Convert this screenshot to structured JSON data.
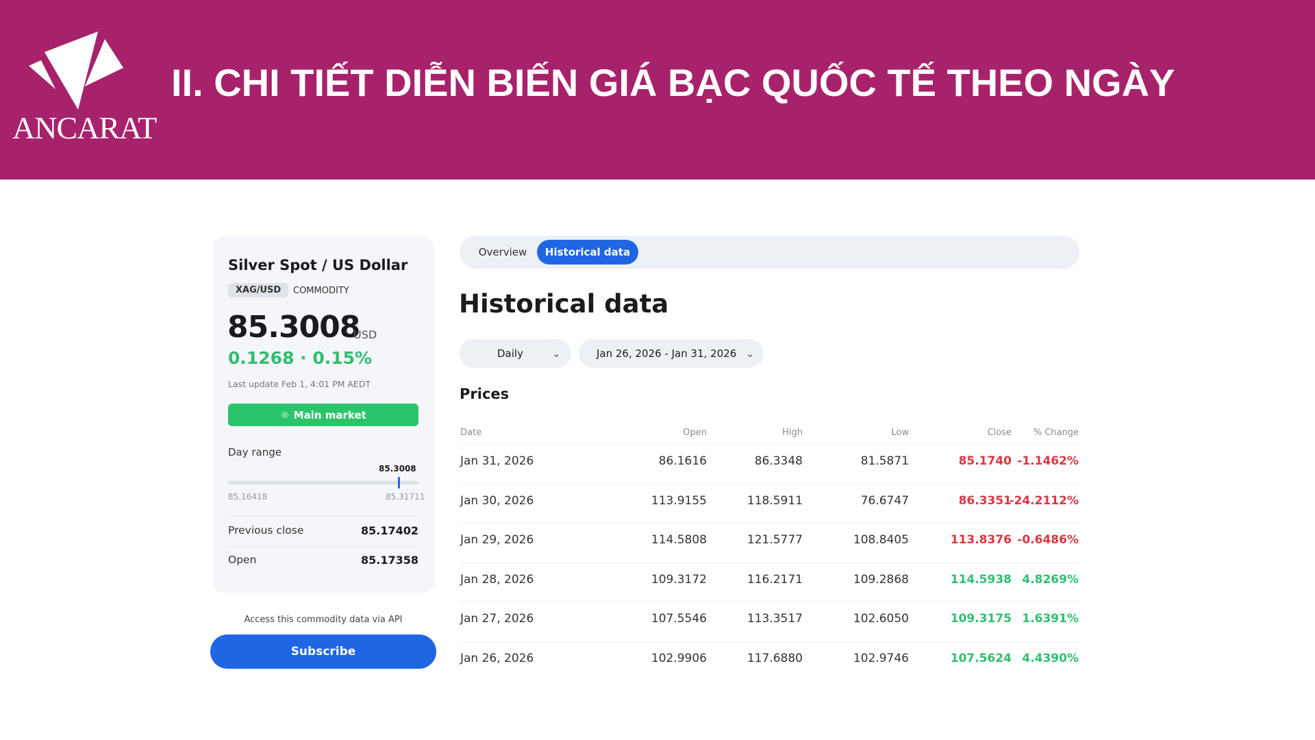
{
  "banner": {
    "brand": "ANCARAT",
    "title": "II. CHI TIẾT DIỄN BIẾN GIÁ BẠC QUỐC TẾ THEO NGÀY",
    "background": "#a8226b"
  },
  "instrument": {
    "name": "Silver Spot / US Dollar",
    "symbol": "XAG/USD",
    "type": "COMMODITY",
    "price": "85.3008",
    "currency": "USD",
    "change": "0.1268 · 0.15%",
    "last_update": "Last update Feb 1, 4:01 PM AEDT",
    "market_label": "Main market",
    "day_range": {
      "label": "Day range",
      "current": "85.3008",
      "low": "85.16418",
      "high": "85.31711",
      "position": 0.9
    },
    "previous_close": {
      "label": "Previous close",
      "value": "85.17402"
    },
    "open": {
      "label": "Open",
      "value": "85.17358"
    },
    "api_text": "Access this commodity data via API",
    "subscribe": "Subscribe"
  },
  "tabs": [
    {
      "label": "Overview",
      "active": false
    },
    {
      "label": "Historical data",
      "active": true
    }
  ],
  "main": {
    "title": "Historical data",
    "interval": "Daily",
    "date_range": "Jan 26, 2026 - Jan 31, 2026",
    "section": "Prices"
  },
  "table": {
    "headers": [
      "Date",
      "Open",
      "High",
      "Low",
      "Close",
      "% Change"
    ],
    "rows": [
      [
        "Jan 31, 2026",
        "86.1616",
        "86.3348",
        "81.5871",
        "85.1740",
        "-1.1462%"
      ],
      [
        "Jan 30, 2026",
        "113.9155",
        "118.5911",
        "76.6747",
        "86.3351",
        "-24.2112%"
      ],
      [
        "Jan 29, 2026",
        "114.5808",
        "121.5777",
        "108.8405",
        "113.8376",
        "-0.6486%"
      ],
      [
        "Jan 28, 2026",
        "109.3172",
        "116.2171",
        "109.2868",
        "114.5938",
        "4.8269%"
      ],
      [
        "Jan 27, 2026",
        "107.5546",
        "113.3517",
        "102.6050",
        "109.3175",
        "1.6391%"
      ],
      [
        "Jan 26, 2026",
        "102.9906",
        "117.6880",
        "102.9746",
        "107.5624",
        "4.4390%"
      ]
    ]
  },
  "colors": {
    "up": "#2fbf71",
    "down": "#d9373f",
    "accent": "#1f66e5"
  }
}
